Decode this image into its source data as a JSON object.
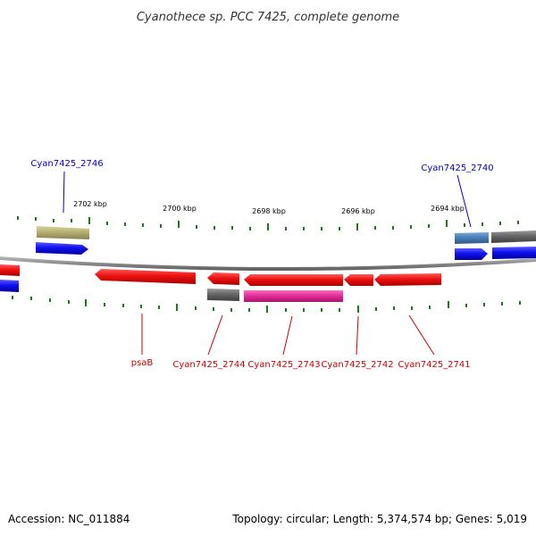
{
  "title": "Cyanothece sp. PCC 7425, complete genome",
  "footer": {
    "accession": "Accession: NC_011884",
    "summary": "Topology: circular; Length: 5,374,574 bp; Genes: 5,019"
  },
  "ruler": {
    "labels": [
      "2702 kbp",
      "2700 kbp",
      "2698 kbp",
      "2696 kbp",
      "2694 kbp"
    ]
  },
  "gene_labels": {
    "top": [
      "Cyan7425_2746",
      "Cyan7425_2740"
    ],
    "bottom": [
      "psaB",
      "Cyan7425_2744",
      "Cyan7425_2743",
      "Cyan7425_2742",
      "Cyan7425_2741"
    ]
  },
  "colors": {
    "forward_label": "#0000cc",
    "reverse_label": "#cc0000",
    "backbone": "#8a8a8a",
    "tick": "#1a7a1a",
    "red_feature": "#ee1111",
    "blue_feature": "#1111ee",
    "gray_feature": "#666666",
    "olive_feature": "#b5b074",
    "steel_feature": "#4a7fb5",
    "pink_feature": "#e62e9a"
  }
}
